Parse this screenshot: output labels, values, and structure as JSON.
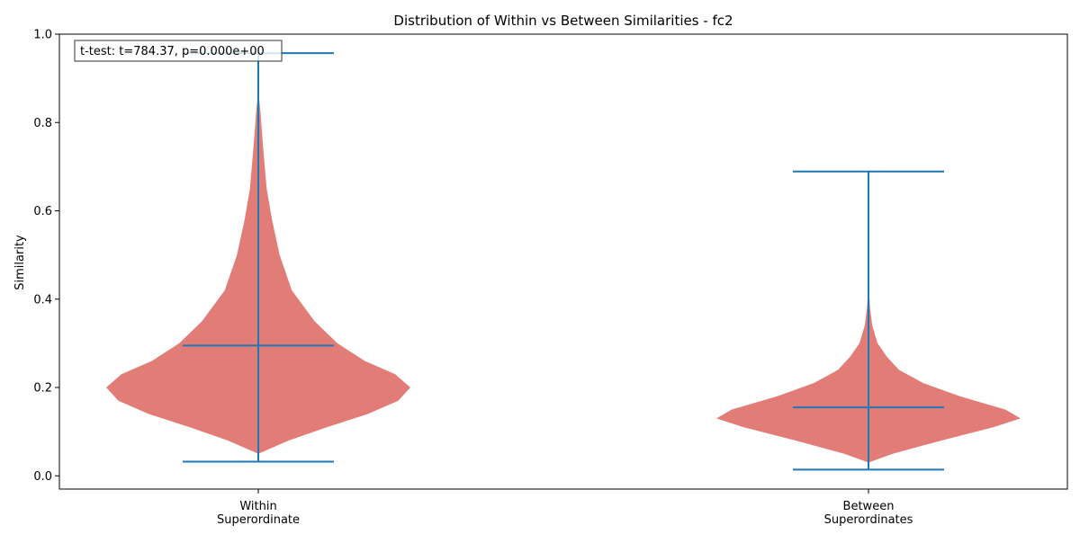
{
  "chart_data": {
    "type": "violin",
    "title": "Distribution of Within vs Between Similarities - fc2",
    "xlabel": "",
    "ylabel": "Similarity",
    "ylim": [
      -0.03,
      1.0
    ],
    "yticks": [
      0.0,
      0.2,
      0.4,
      0.6,
      0.8,
      1.0
    ],
    "ytick_labels": [
      "0.0",
      "0.2",
      "0.4",
      "0.6",
      "0.8",
      "1.0"
    ],
    "annotation": "t-test: t=784.37, p=0.000e+00",
    "colors": {
      "body": "#e07570",
      "lines": "#1f77b4"
    },
    "groups": [
      {
        "label_lines": [
          "Within",
          "Superordinate"
        ],
        "min": 0.032,
        "max": 0.957,
        "mean": 0.295,
        "density": [
          [
            0.05,
            0.0
          ],
          [
            0.08,
            0.2
          ],
          [
            0.11,
            0.45
          ],
          [
            0.14,
            0.72
          ],
          [
            0.17,
            0.92
          ],
          [
            0.2,
            1.0
          ],
          [
            0.23,
            0.9
          ],
          [
            0.26,
            0.7
          ],
          [
            0.3,
            0.52
          ],
          [
            0.35,
            0.37
          ],
          [
            0.42,
            0.22
          ],
          [
            0.5,
            0.14
          ],
          [
            0.58,
            0.09
          ],
          [
            0.65,
            0.055
          ],
          [
            0.75,
            0.03
          ],
          [
            0.82,
            0.015
          ],
          [
            0.86,
            0.004
          ]
        ]
      },
      {
        "label_lines": [
          "Between",
          "Superordinates"
        ],
        "min": 0.014,
        "max": 0.689,
        "mean": 0.155,
        "density": [
          [
            0.03,
            0.0
          ],
          [
            0.05,
            0.16
          ],
          [
            0.08,
            0.48
          ],
          [
            0.11,
            0.82
          ],
          [
            0.13,
            1.0
          ],
          [
            0.15,
            0.9
          ],
          [
            0.18,
            0.6
          ],
          [
            0.21,
            0.36
          ],
          [
            0.24,
            0.2
          ],
          [
            0.27,
            0.12
          ],
          [
            0.3,
            0.06
          ],
          [
            0.34,
            0.025
          ],
          [
            0.38,
            0.01
          ],
          [
            0.42,
            0.003
          ]
        ]
      }
    ]
  }
}
